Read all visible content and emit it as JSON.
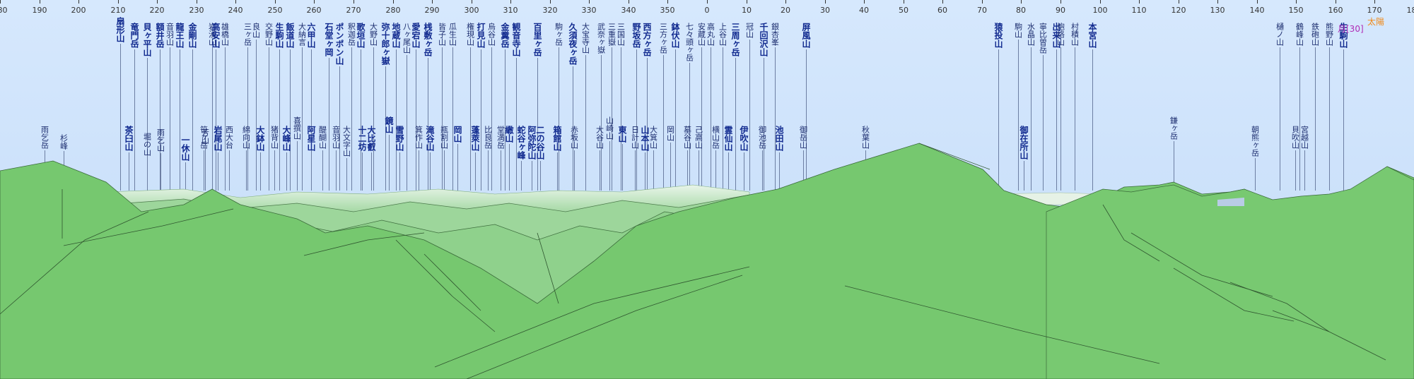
{
  "scale": {
    "ticks": [
      {
        "label": "180"
      },
      {
        "label": "190"
      },
      {
        "label": "200"
      },
      {
        "label": "210"
      },
      {
        "label": "220"
      },
      {
        "label": "230"
      },
      {
        "label": "240"
      },
      {
        "label": "250"
      },
      {
        "label": "260"
      },
      {
        "label": "270"
      },
      {
        "label": "280"
      },
      {
        "label": "290"
      },
      {
        "label": "300"
      },
      {
        "label": "310"
      },
      {
        "label": "320"
      },
      {
        "label": "330"
      },
      {
        "label": "340"
      },
      {
        "label": "350"
      },
      {
        "label": "0"
      },
      {
        "label": "10"
      },
      {
        "label": "20"
      },
      {
        "label": "30"
      },
      {
        "label": "40"
      },
      {
        "label": "50"
      },
      {
        "label": "60"
      },
      {
        "label": "70"
      },
      {
        "label": "80"
      },
      {
        "label": "90"
      },
      {
        "label": "100"
      },
      {
        "label": "110"
      },
      {
        "label": "120"
      },
      {
        "label": "130"
      },
      {
        "label": "140"
      },
      {
        "label": "150"
      },
      {
        "label": "160"
      },
      {
        "label": "170"
      },
      {
        "label": "180"
      }
    ]
  },
  "celestial": {
    "sun_label": "太陽",
    "moon_label": "月[30]"
  },
  "peaks": [
    {
      "name": "扇形山",
      "bold": true
    },
    {
      "name": "竜門岳",
      "bold": true
    },
    {
      "name": "貝ヶ平山",
      "bold": true
    },
    {
      "name": "額井岳",
      "bold": true
    },
    {
      "name": "音羽山",
      "bold": false
    },
    {
      "name": "龍王山",
      "bold": true
    },
    {
      "name": "金剛山",
      "bold": true
    },
    {
      "name": "岩湧山",
      "bold": false
    },
    {
      "name": "雄橋山",
      "bold": false
    },
    {
      "name": "高安山",
      "bold": true
    },
    {
      "name": "三ヶ岳",
      "bold": false
    },
    {
      "name": "良山",
      "bold": false
    },
    {
      "name": "交野山",
      "bold": false
    },
    {
      "name": "生駒山",
      "bold": true
    },
    {
      "name": "飯道山",
      "bold": true
    },
    {
      "name": "大納言",
      "bold": false
    },
    {
      "name": "六甲山",
      "bold": true
    },
    {
      "name": "石堂ヶ岡",
      "bold": true
    },
    {
      "name": "ポンポン山",
      "bold": true
    },
    {
      "name": "釈迦岳",
      "bold": false
    },
    {
      "name": "歌垣山",
      "bold": true
    },
    {
      "name": "大野山",
      "bold": false
    },
    {
      "name": "弥十郎ヶ嶽",
      "bold": true
    },
    {
      "name": "地蔵山",
      "bold": true
    },
    {
      "name": "八ヶ尾山",
      "bold": false
    },
    {
      "name": "愛宕山",
      "bold": true
    },
    {
      "name": "桟敷ヶ岳",
      "bold": true
    },
    {
      "name": "皆子山",
      "bold": false
    },
    {
      "name": "瓜生山",
      "bold": false
    },
    {
      "name": "権現山",
      "bold": false
    },
    {
      "name": "打見山",
      "bold": true
    },
    {
      "name": "烏谷山",
      "bold": false
    },
    {
      "name": "金糞岳",
      "bold": true
    },
    {
      "name": "観音寺山",
      "bold": true
    },
    {
      "name": "百里ヶ岳",
      "bold": true
    },
    {
      "name": "駒ヶ岳",
      "bold": false
    },
    {
      "name": "久須夜ヶ岳",
      "bold": true
    },
    {
      "name": "大宝寺山",
      "bold": false
    },
    {
      "name": "武奈ヶ嶽",
      "bold": false
    },
    {
      "name": "三重嶽",
      "bold": false
    },
    {
      "name": "三国山",
      "bold": false
    },
    {
      "name": "野坂岳",
      "bold": true
    },
    {
      "name": "西方ヶ岳",
      "bold": true
    },
    {
      "name": "三方ヶ岳",
      "bold": false
    },
    {
      "name": "鉢伏山",
      "bold": true
    },
    {
      "name": "七々頭ヶ岳",
      "bold": false
    },
    {
      "name": "安蔵山",
      "bold": false
    },
    {
      "name": "高丸山",
      "bold": false
    },
    {
      "name": "上谷山",
      "bold": false
    },
    {
      "name": "三周ヶ岳",
      "bold": true
    },
    {
      "name": "冠山",
      "bold": false
    },
    {
      "name": "千回沢山",
      "bold": true
    },
    {
      "name": "銀杏峯",
      "bold": false
    },
    {
      "name": "屏風山",
      "bold": true
    },
    {
      "name": "猿投山",
      "bold": true
    },
    {
      "name": "駒山",
      "bold": false
    },
    {
      "name": "水晶山",
      "bold": false
    },
    {
      "name": "寧比曽岳",
      "bold": false
    },
    {
      "name": "出来山",
      "bold": true
    },
    {
      "name": "炮烙山",
      "bold": false
    },
    {
      "name": "村積山",
      "bold": false
    },
    {
      "name": "本宮山",
      "bold": true
    },
    {
      "name": "樋ノ山",
      "bold": false
    },
    {
      "name": "鶴峰山",
      "bold": false
    },
    {
      "name": "鉄砲山",
      "bold": false
    },
    {
      "name": "熊野山",
      "bold": false
    },
    {
      "name": "生駒山",
      "bold": true
    },
    {
      "name": "雨乞岳",
      "bold": false
    },
    {
      "name": "杉峰",
      "bold": false
    },
    {
      "name": "茶臼山",
      "bold": true
    },
    {
      "name": "堀の山",
      "bold": false
    },
    {
      "name": "雨乞山",
      "bold": false
    },
    {
      "name": "一休山",
      "bold": true
    },
    {
      "name": "笹ヶ岳",
      "bold": false
    },
    {
      "name": "芳山",
      "bold": false
    },
    {
      "name": "岩尾山",
      "bold": true
    },
    {
      "name": "西大台",
      "bold": false
    },
    {
      "name": "綿向山",
      "bold": false
    },
    {
      "name": "大鉢山",
      "bold": true
    },
    {
      "name": "猪背山",
      "bold": false
    },
    {
      "name": "大峰山",
      "bold": true
    },
    {
      "name": "喜撰山",
      "bold": false
    },
    {
      "name": "阿星山",
      "bold": true
    },
    {
      "name": "醍醐山",
      "bold": false
    },
    {
      "name": "音羽山",
      "bold": false
    },
    {
      "name": "大文字山",
      "bold": false
    },
    {
      "name": "十二坊",
      "bold": true
    },
    {
      "name": "大比叡",
      "bold": true
    },
    {
      "name": "鏡山",
      "bold": true
    },
    {
      "name": "雪野山",
      "bold": true
    },
    {
      "name": "箕作山",
      "bold": false
    },
    {
      "name": "滝谷山",
      "bold": true
    },
    {
      "name": "瓶割山",
      "bold": false
    },
    {
      "name": "岡山",
      "bold": true
    },
    {
      "name": "蓬萊山",
      "bold": true
    },
    {
      "name": "比良岳",
      "bold": false
    },
    {
      "name": "堂満岳",
      "bold": false
    },
    {
      "name": "繖山",
      "bold": true
    },
    {
      "name": "蛇谷ヶ峰",
      "bold": true
    },
    {
      "name": "阿弥陀山",
      "bold": true
    },
    {
      "name": "二の谷山",
      "bold": true
    },
    {
      "name": "箱館山",
      "bold": true
    },
    {
      "name": "赤坂山",
      "bold": false
    },
    {
      "name": "大谷山",
      "bold": false
    },
    {
      "name": "山崎山",
      "bold": false
    },
    {
      "name": "東山",
      "bold": true
    },
    {
      "name": "日計山",
      "bold": false
    },
    {
      "name": "山本山",
      "bold": true
    },
    {
      "name": "大箕山",
      "bold": false
    },
    {
      "name": "岡山",
      "bold": false
    },
    {
      "name": "墓谷山",
      "bold": false
    },
    {
      "name": "己高山",
      "bold": false
    },
    {
      "name": "横山岳",
      "bold": false
    },
    {
      "name": "霊仙山",
      "bold": true
    },
    {
      "name": "伊吹山",
      "bold": true
    },
    {
      "name": "御池岳",
      "bold": false
    },
    {
      "name": "池田山",
      "bold": true
    },
    {
      "name": "御岳山",
      "bold": false
    },
    {
      "name": "秋葉山",
      "bold": false
    },
    {
      "name": "御在所山",
      "bold": true
    },
    {
      "name": "鎌ヶ岳",
      "bold": false
    },
    {
      "name": "朝熊ヶ岳",
      "bold": false
    },
    {
      "name": "宮越山",
      "bold": false
    },
    {
      "name": "貝吹山",
      "bold": false
    }
  ]
}
